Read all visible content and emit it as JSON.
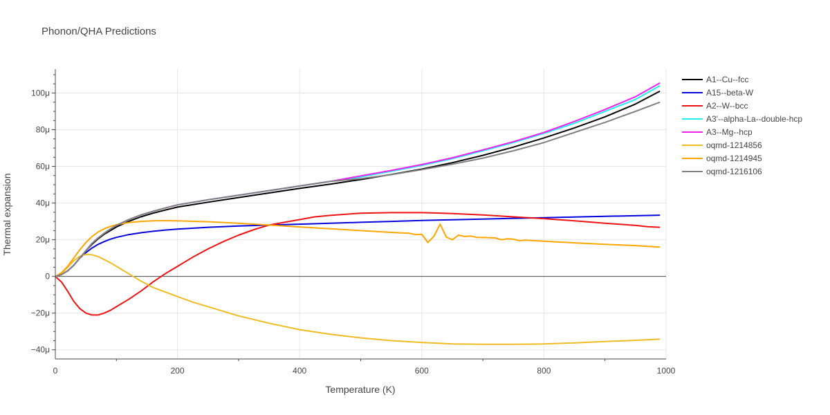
{
  "chart_data": {
    "type": "line",
    "title": "Phonon/QHA Predictions",
    "xlabel": "Temperature (K)",
    "ylabel": "Thermal expansion",
    "xlim": [
      0,
      1000
    ],
    "ylim": [
      -45,
      113
    ],
    "x_ticks": [
      0,
      200,
      400,
      600,
      800,
      1000
    ],
    "x_tick_labels": [
      "0",
      "200",
      "400",
      "600",
      "800",
      "1000"
    ],
    "y_ticks": [
      -40,
      -20,
      0,
      20,
      40,
      60,
      80,
      100
    ],
    "y_tick_labels": [
      "−40μ",
      "−20μ",
      "0",
      "20μ",
      "40μ",
      "60μ",
      "80μ",
      "100μ"
    ],
    "y_unit": "μ (×1e-6)",
    "grid": true,
    "legend_position": "right",
    "series": [
      {
        "name": "A1--Cu--fcc",
        "color": "#000000",
        "x": [
          0,
          10,
          20,
          30,
          40,
          50,
          60,
          70,
          80,
          90,
          100,
          120,
          140,
          160,
          180,
          200,
          250,
          300,
          350,
          400,
          450,
          500,
          550,
          600,
          650,
          700,
          750,
          800,
          850,
          900,
          950,
          990
        ],
        "y": [
          0,
          1,
          3,
          6,
          10,
          14,
          17.5,
          20.5,
          23,
          25,
          27,
          30,
          32.5,
          34.5,
          36.2,
          37.8,
          40.5,
          43,
          45.5,
          48,
          50.3,
          52.8,
          55.6,
          58.5,
          62,
          66,
          70.5,
          75.5,
          81,
          87,
          94,
          101
        ]
      },
      {
        "name": "A15--beta-W",
        "color": "#0000dd",
        "x": [
          0,
          10,
          20,
          30,
          40,
          50,
          60,
          70,
          80,
          90,
          100,
          120,
          140,
          160,
          180,
          200,
          250,
          300,
          350,
          400,
          450,
          500,
          550,
          600,
          650,
          700,
          750,
          800,
          850,
          900,
          950,
          990
        ],
        "y": [
          0,
          1,
          3,
          6,
          10,
          13,
          15.5,
          17.5,
          19,
          20.3,
          21.3,
          22.8,
          23.8,
          24.6,
          25.3,
          25.8,
          26.8,
          27.5,
          28,
          28.5,
          29,
          29.5,
          30,
          30.5,
          30.9,
          31.3,
          31.7,
          32,
          32.4,
          32.8,
          33.1,
          33.4
        ]
      },
      {
        "name": "A2--W--bcc",
        "color": "#ee1111",
        "x": [
          0,
          10,
          20,
          30,
          40,
          50,
          60,
          70,
          80,
          90,
          100,
          120,
          140,
          160,
          180,
          200,
          225,
          250,
          275,
          300,
          325,
          350,
          375,
          400,
          425,
          450,
          500,
          550,
          600,
          650,
          700,
          750,
          800,
          850,
          900,
          950,
          970,
          990
        ],
        "y": [
          0,
          -3,
          -8,
          -13.5,
          -17.5,
          -20,
          -21,
          -21,
          -20,
          -18.5,
          -16.5,
          -12.5,
          -8,
          -3,
          1.5,
          5.5,
          10.5,
          15,
          19,
          22.5,
          25.5,
          28,
          29.5,
          31,
          32.5,
          33.3,
          34.5,
          34.8,
          34.8,
          34.3,
          33.5,
          32.5,
          31.5,
          30.3,
          29,
          27.8,
          27.1,
          26.8
        ]
      },
      {
        "name": "A3'--alpha-La--double-hcp",
        "color": "#22eeee",
        "x": [
          0,
          10,
          20,
          30,
          40,
          50,
          60,
          70,
          80,
          90,
          100,
          120,
          140,
          160,
          180,
          200,
          250,
          300,
          350,
          400,
          450,
          500,
          550,
          600,
          650,
          700,
          750,
          800,
          850,
          900,
          950,
          990
        ],
        "y": [
          0,
          1,
          3,
          6,
          10,
          14,
          18,
          21,
          23.5,
          25.8,
          27.8,
          31,
          33.5,
          35.5,
          37.3,
          39,
          41.8,
          44.3,
          46.8,
          49.3,
          51.8,
          54.3,
          57.3,
          60.5,
          64.2,
          68.5,
          73,
          78,
          83.5,
          90,
          96.5,
          104
        ]
      },
      {
        "name": "A3--Mg--hcp",
        "color": "#ee22ee",
        "x": [
          0,
          10,
          20,
          30,
          40,
          50,
          60,
          70,
          80,
          90,
          100,
          120,
          140,
          160,
          180,
          200,
          250,
          300,
          350,
          400,
          450,
          500,
          550,
          600,
          650,
          700,
          750,
          800,
          850,
          900,
          950,
          990
        ],
        "y": [
          0,
          1,
          3,
          6,
          10,
          14,
          18,
          21,
          23.5,
          25.8,
          27.8,
          31,
          33.5,
          35.5,
          37.3,
          39,
          41.8,
          44.3,
          46.8,
          49.3,
          51.8,
          54.8,
          57.8,
          61,
          64.7,
          69,
          73.5,
          78.5,
          84.5,
          91,
          98,
          105.5
        ]
      },
      {
        "name": "oqmd-1214856",
        "color": "#eebb22",
        "x": [
          0,
          10,
          20,
          30,
          40,
          50,
          60,
          70,
          80,
          90,
          100,
          120,
          140,
          160,
          180,
          200,
          225,
          250,
          300,
          350,
          400,
          450,
          500,
          550,
          600,
          650,
          700,
          750,
          800,
          850,
          900,
          950,
          990
        ],
        "y": [
          0,
          1.5,
          5,
          8.5,
          11,
          12,
          11.8,
          10.8,
          9.2,
          7.5,
          5.5,
          1.5,
          -2.5,
          -6,
          -8.5,
          -11,
          -14,
          -16.5,
          -21.5,
          -25.5,
          -29,
          -31.5,
          -33.5,
          -35,
          -36,
          -36.8,
          -37,
          -37,
          -36.8,
          -36.2,
          -35.5,
          -34.8,
          -34.2
        ]
      },
      {
        "name": "oqmd-1214945",
        "color": "#ffa500",
        "x": [
          0,
          10,
          20,
          30,
          40,
          50,
          60,
          70,
          80,
          90,
          100,
          120,
          140,
          160,
          180,
          200,
          250,
          300,
          350,
          400,
          450,
          500,
          550,
          580,
          590,
          600,
          610,
          620,
          630,
          640,
          650,
          660,
          670,
          680,
          690,
          700,
          720,
          730,
          740,
          750,
          760,
          770,
          800,
          850,
          900,
          950,
          990
        ],
        "y": [
          0,
          2,
          5.5,
          10,
          14.5,
          18.5,
          21.8,
          24.2,
          26,
          27.2,
          28.2,
          29.4,
          30,
          30.3,
          30.4,
          30.3,
          29.8,
          29,
          28,
          27,
          26,
          25,
          24,
          23.5,
          22.8,
          23,
          18.5,
          22,
          28.5,
          21.5,
          20,
          22.5,
          21.8,
          22,
          21.3,
          21.2,
          21,
          20,
          20.5,
          20.3,
          19.5,
          19.8,
          19.2,
          18.3,
          17.5,
          16.8,
          16
        ]
      },
      {
        "name": "oqmd-1216106",
        "color": "#808080",
        "x": [
          0,
          10,
          20,
          30,
          40,
          50,
          60,
          70,
          80,
          90,
          100,
          120,
          140,
          160,
          180,
          200,
          250,
          300,
          350,
          400,
          450,
          500,
          550,
          600,
          650,
          700,
          750,
          800,
          850,
          900,
          950,
          990
        ],
        "y": [
          0,
          1,
          3,
          6,
          10,
          14,
          18,
          21,
          23.5,
          25.8,
          27.8,
          31,
          33.5,
          35.5,
          37.3,
          39,
          41.8,
          44.3,
          46.8,
          49.3,
          51.8,
          53.3,
          55.5,
          58.2,
          61.2,
          64.5,
          68.5,
          73,
          78.5,
          84,
          90,
          95
        ]
      }
    ]
  }
}
